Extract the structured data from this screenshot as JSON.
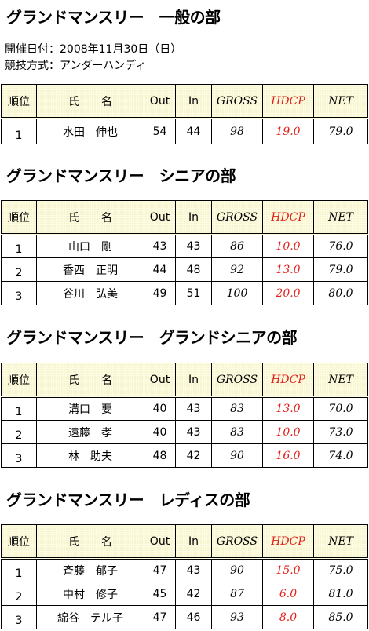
{
  "date": "開催日付：2008年11月30日（日）",
  "format": "競技方式：アンダーハンディ",
  "sections": [
    {
      "title": "グランドマンスリー　一般の部",
      "header": [
        "順位",
        "氏　　名",
        "Out",
        "In",
        "GROSS",
        "HDCP",
        "NET"
      ],
      "rows": [
        [
          "1",
          "水田　伸也",
          "54",
          "44",
          "98",
          "19.0",
          "79.0"
        ]
      ]
    },
    {
      "title": "グランドマンスリー　シニアの部",
      "header": [
        "順位",
        "氏　　名",
        "Out",
        "In",
        "GROSS",
        "HDCP",
        "NET"
      ],
      "rows": [
        [
          "1",
          "山口　剛",
          "43",
          "43",
          "86",
          "10.0",
          "76.0"
        ],
        [
          "2",
          "香西　正明",
          "44",
          "48",
          "92",
          "13.0",
          "79.0"
        ],
        [
          "3",
          "谷川　弘美",
          "49",
          "51",
          "100",
          "20.0",
          "80.0"
        ]
      ]
    },
    {
      "title": "グランドマンスリー　グランドシニアの部",
      "header": [
        "順位",
        "氏　　名",
        "Out",
        "In",
        "GROSS",
        "HDCP",
        "NET"
      ],
      "rows": [
        [
          "1",
          "溝口　要",
          "40",
          "43",
          "83",
          "13.0",
          "70.0"
        ],
        [
          "2",
          "遠藤　孝",
          "40",
          "43",
          "83",
          "10.0",
          "73.0"
        ],
        [
          "3",
          "林　助夫",
          "48",
          "42",
          "90",
          "16.0",
          "74.0"
        ]
      ]
    },
    {
      "title": "グランドマンスリー　レディスの部",
      "header": [
        "順位",
        "氏　　名",
        "Out",
        "In",
        "GROSS",
        "HDCP",
        "NET"
      ],
      "rows": [
        [
          "1",
          "斉藤　郁子",
          "47",
          "43",
          "90",
          "15.0",
          "75.0"
        ],
        [
          "2",
          "中村　修子",
          "45",
          "42",
          "87",
          "6.0",
          "81.0"
        ],
        [
          "3",
          "綿谷　テル子",
          "47",
          "46",
          "93",
          "8.0",
          "85.0"
        ]
      ]
    }
  ]
}
